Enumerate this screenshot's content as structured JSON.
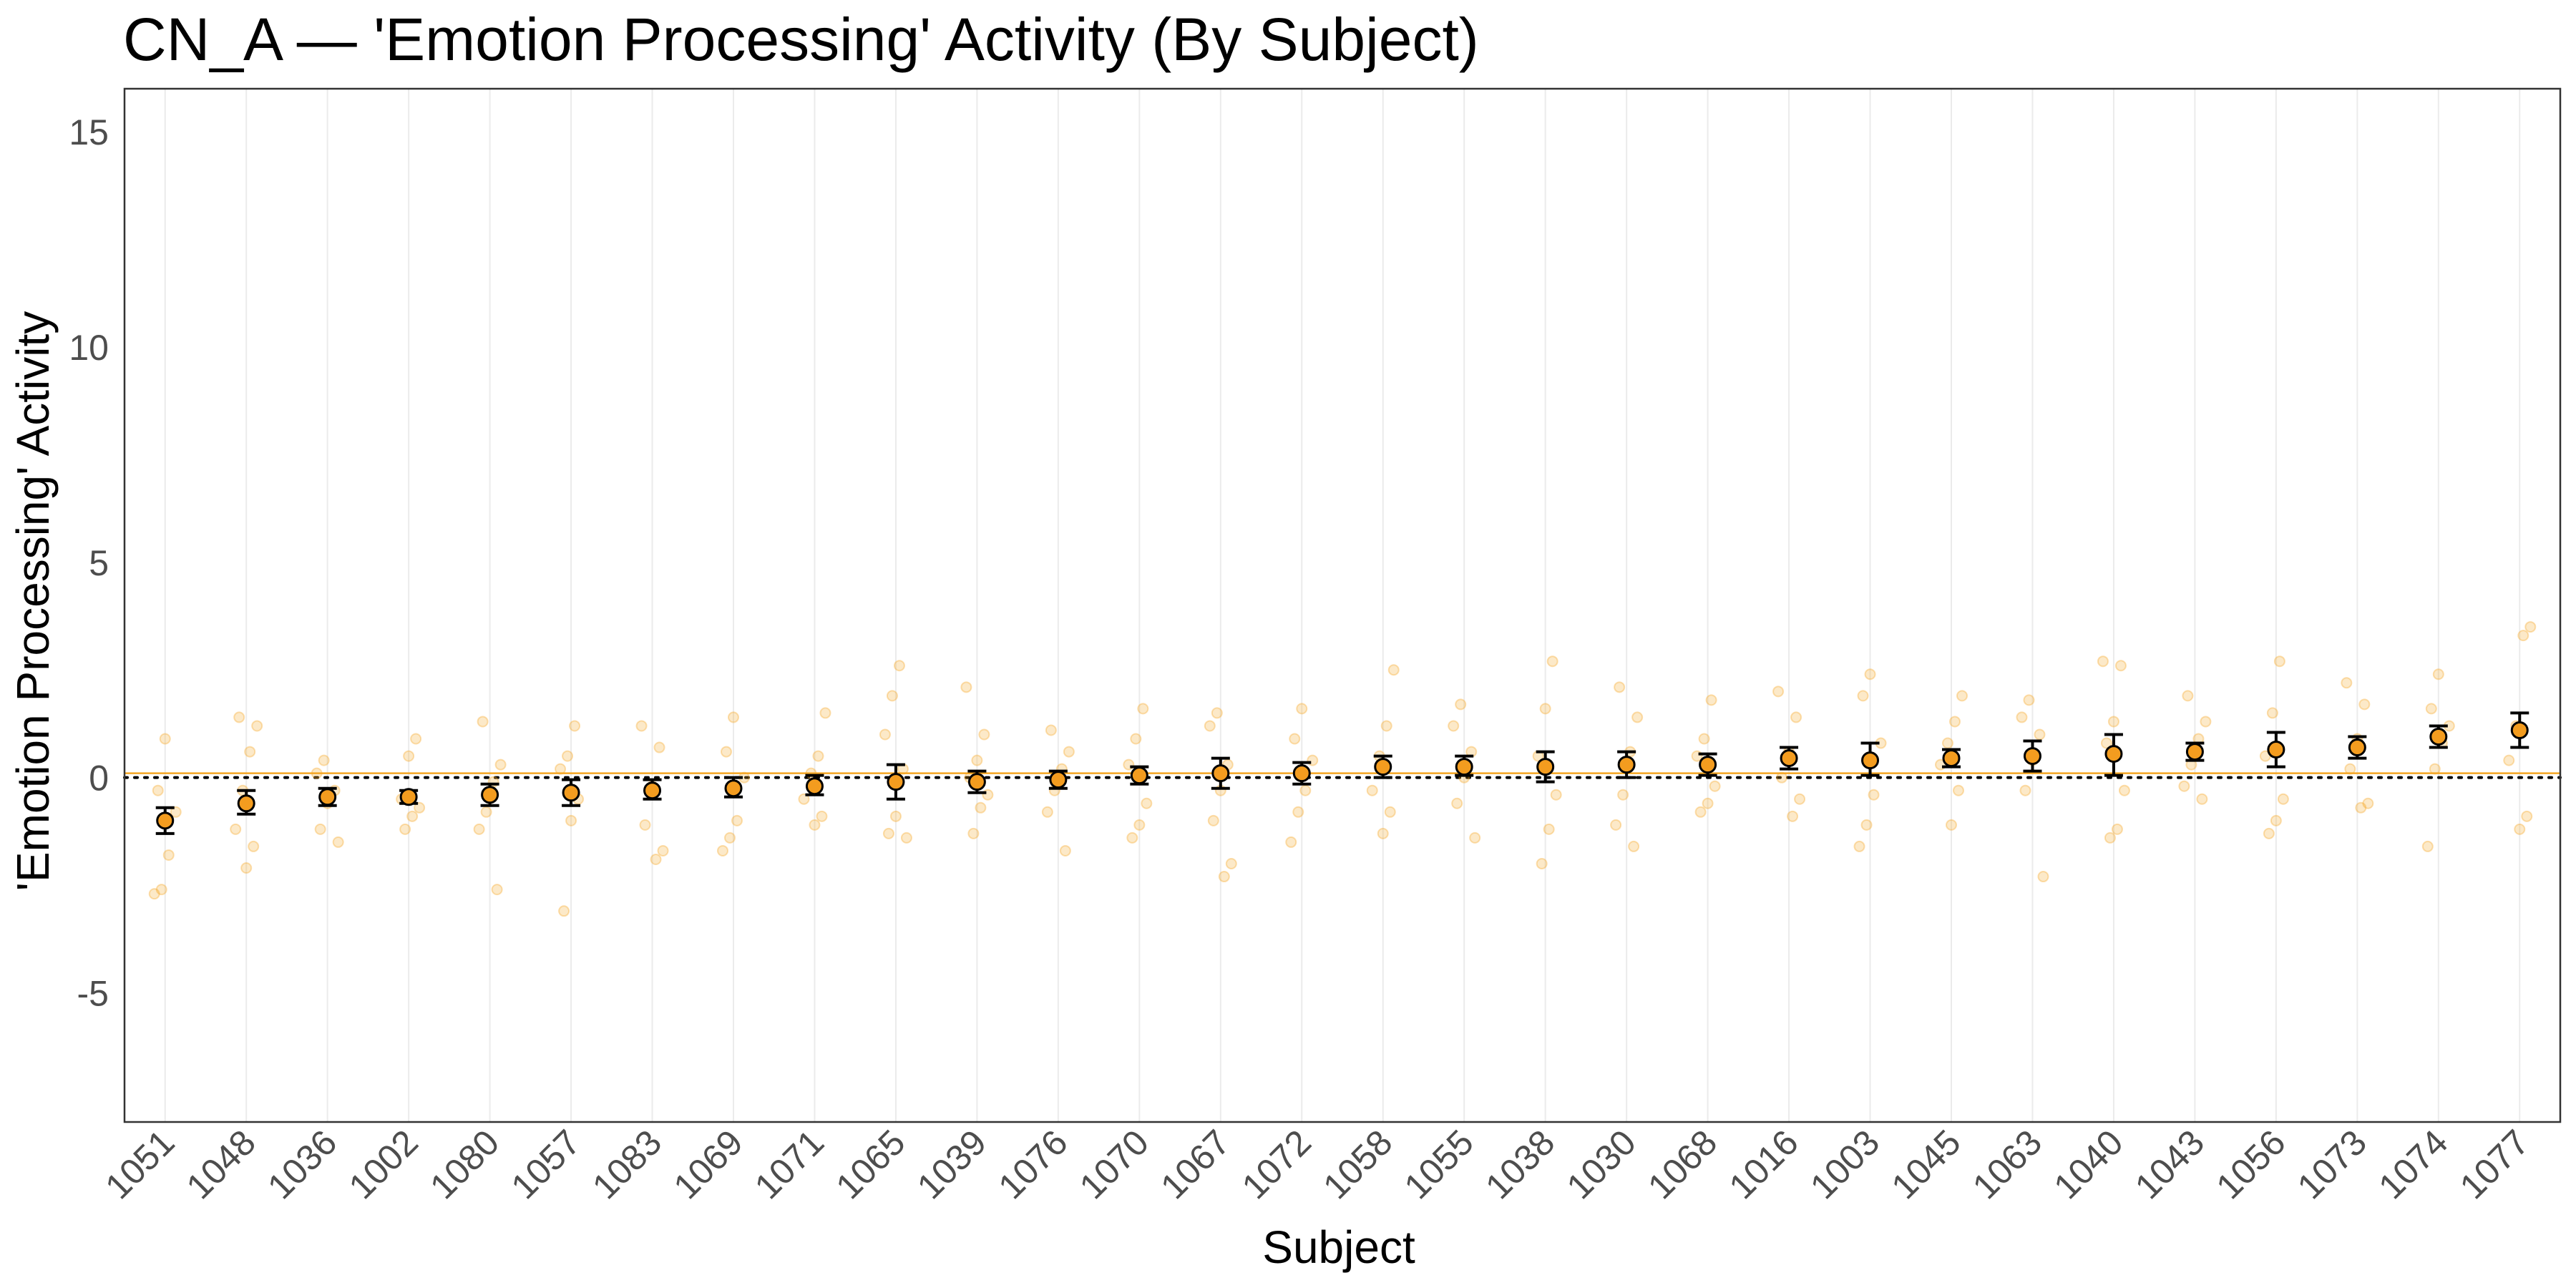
{
  "chart_data": {
    "type": "scatter",
    "title": "CN_A — 'Emotion Processing' Activity (By Subject)",
    "xlabel": "Subject",
    "ylabel": "'Emotion Processing' Activity",
    "ylim": [
      -8,
      16
    ],
    "yticks": [
      -5,
      0,
      5,
      10,
      15
    ],
    "ytick_labels": [
      "-5",
      "0",
      "5",
      "10",
      "15"
    ],
    "grid": "vertical",
    "reference_lines": [
      {
        "style": "dotted",
        "y": 0,
        "color": "#000000"
      },
      {
        "style": "solid",
        "y": 0.1,
        "color": "#F5A623"
      }
    ],
    "categories": [
      "1051",
      "1048",
      "1036",
      "1002",
      "1080",
      "1057",
      "1083",
      "1069",
      "1071",
      "1065",
      "1039",
      "1076",
      "1070",
      "1067",
      "1072",
      "1058",
      "1055",
      "1038",
      "1030",
      "1068",
      "1016",
      "1003",
      "1045",
      "1063",
      "1040",
      "1043",
      "1056",
      "1073",
      "1074",
      "1077"
    ],
    "series": [
      {
        "kind": "mean_with_error",
        "color": "#F39C1F",
        "mean": [
          -1.0,
          -0.6,
          -0.45,
          -0.45,
          -0.4,
          -0.35,
          -0.3,
          -0.25,
          -0.2,
          -0.1,
          -0.1,
          -0.05,
          0.05,
          0.1,
          0.1,
          0.25,
          0.25,
          0.25,
          0.3,
          0.3,
          0.45,
          0.4,
          0.45,
          0.5,
          0.55,
          0.6,
          0.65,
          0.7,
          0.95,
          1.1
        ],
        "lower": [
          -1.3,
          -0.85,
          -0.65,
          -0.6,
          -0.65,
          -0.65,
          -0.5,
          -0.45,
          -0.4,
          -0.5,
          -0.35,
          -0.25,
          -0.15,
          -0.25,
          -0.15,
          0.0,
          0.05,
          -0.1,
          0.0,
          0.05,
          0.2,
          0.05,
          0.25,
          0.15,
          0.05,
          0.4,
          0.25,
          0.45,
          0.7,
          0.7
        ],
        "upper": [
          -0.7,
          -0.3,
          -0.25,
          -0.3,
          -0.15,
          -0.05,
          -0.05,
          0.0,
          0.05,
          0.3,
          0.15,
          0.15,
          0.25,
          0.45,
          0.35,
          0.5,
          0.5,
          0.6,
          0.6,
          0.55,
          0.7,
          0.8,
          0.65,
          0.85,
          1.0,
          0.8,
          1.05,
          0.95,
          1.2,
          1.5
        ]
      },
      {
        "kind": "raw_points",
        "color": "#F5A623",
        "opacity": 0.25,
        "points": [
          [
            -2.7,
            -2.6,
            -1.8,
            -0.8,
            -0.3,
            0.9
          ],
          [
            -2.1,
            -1.6,
            -1.2,
            -0.3,
            0.6,
            1.2,
            1.4
          ],
          [
            -1.5,
            -1.2,
            -0.6,
            -0.3,
            0.1,
            0.4
          ],
          [
            -1.2,
            -0.9,
            -0.7,
            -0.5,
            0.5,
            0.9
          ],
          [
            -2.6,
            -1.2,
            -0.8,
            -0.1,
            0.3,
            1.3
          ],
          [
            -3.1,
            -1.0,
            -0.5,
            0.2,
            0.5,
            1.2
          ],
          [
            -1.9,
            -1.7,
            -1.1,
            -0.2,
            0.7,
            1.2
          ],
          [
            -1.7,
            -1.4,
            -1.0,
            0.0,
            0.6,
            1.4
          ],
          [
            -1.1,
            -0.9,
            -0.5,
            0.1,
            0.5,
            1.5
          ],
          [
            -1.4,
            -1.3,
            -0.9,
            0.2,
            1.0,
            1.9,
            2.6
          ],
          [
            -1.3,
            -0.7,
            -0.4,
            0.0,
            0.4,
            1.0,
            2.1
          ],
          [
            -1.7,
            -0.8,
            -0.3,
            0.2,
            0.6,
            1.1
          ],
          [
            -1.4,
            -1.1,
            -0.6,
            0.3,
            0.9,
            1.6
          ],
          [
            -2.3,
            -2.0,
            -1.0,
            -0.3,
            0.3,
            1.2,
            1.5
          ],
          [
            -1.5,
            -0.8,
            -0.3,
            0.4,
            0.9,
            1.6
          ],
          [
            -1.3,
            -0.8,
            -0.3,
            0.5,
            1.2,
            2.5
          ],
          [
            -1.4,
            -0.6,
            0.0,
            0.6,
            1.2,
            1.7
          ],
          [
            -2.0,
            -1.2,
            -0.4,
            0.5,
            1.6,
            2.7
          ],
          [
            -1.6,
            -1.1,
            -0.4,
            0.6,
            1.4,
            2.1
          ],
          [
            -0.8,
            -0.6,
            -0.2,
            0.5,
            0.9,
            1.8
          ],
          [
            -0.9,
            -0.5,
            0.0,
            0.6,
            1.4,
            2.0
          ],
          [
            -1.6,
            -1.1,
            -0.4,
            0.8,
            1.9,
            2.4
          ],
          [
            -1.1,
            -0.3,
            0.3,
            0.8,
            1.3,
            1.9
          ],
          [
            -2.3,
            -0.3,
            0.4,
            1.0,
            1.4,
            1.8
          ],
          [
            -1.4,
            -1.2,
            -0.3,
            0.8,
            1.3,
            2.6,
            2.7
          ],
          [
            -0.5,
            -0.2,
            0.3,
            0.9,
            1.3,
            1.9
          ],
          [
            -1.3,
            -1.0,
            -0.5,
            0.5,
            1.5,
            2.7
          ],
          [
            -0.7,
            -0.6,
            0.2,
            0.9,
            1.7,
            2.2
          ],
          [
            -1.6,
            0.2,
            0.8,
            1.2,
            1.6,
            2.4
          ],
          [
            -1.2,
            -0.9,
            0.4,
            1.2,
            3.3,
            3.5
          ]
        ]
      }
    ]
  }
}
